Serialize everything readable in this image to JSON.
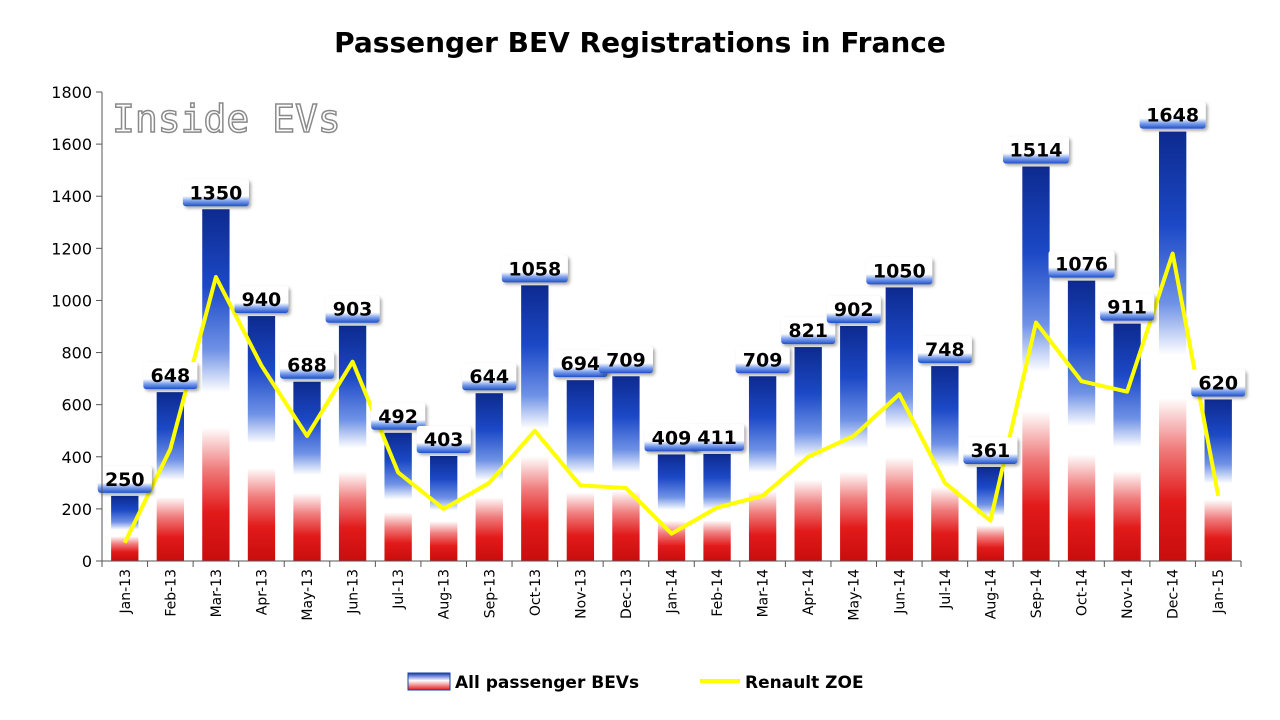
{
  "chart_data": {
    "type": "bar",
    "title": "Passenger BEV Registrations in France",
    "watermark": "Inside EVs",
    "categories": [
      "Jan-13",
      "Feb-13",
      "Mar-13",
      "Apr-13",
      "May-13",
      "Jun-13",
      "Jul-13",
      "Aug-13",
      "Sep-13",
      "Oct-13",
      "Nov-13",
      "Dec-13",
      "Jan-14",
      "Feb-14",
      "Mar-14",
      "Apr-14",
      "May-14",
      "Jun-14",
      "Jul-14",
      "Aug-14",
      "Sep-14",
      "Oct-14",
      "Nov-14",
      "Dec-14",
      "Jan-15"
    ],
    "series": [
      {
        "name": "All passenger BEVs",
        "type": "bar",
        "values": [
          250,
          648,
          1350,
          940,
          688,
          903,
          492,
          403,
          644,
          1058,
          694,
          709,
          409,
          411,
          709,
          821,
          902,
          1050,
          748,
          361,
          1514,
          1076,
          911,
          1648,
          620
        ]
      },
      {
        "name": "Renault ZOE",
        "type": "line",
        "color": "#ffff00",
        "values": [
          70,
          430,
          1090,
          750,
          480,
          765,
          340,
          200,
          300,
          500,
          290,
          280,
          105,
          205,
          250,
          400,
          480,
          640,
          300,
          155,
          915,
          690,
          650,
          1180,
          250
        ]
      }
    ],
    "ylim": [
      0,
      1800
    ],
    "yticks": [
      0,
      200,
      400,
      600,
      800,
      1000,
      1200,
      1400,
      1600,
      1800
    ],
    "xlabel": "",
    "ylabel": "",
    "legend_position": "bottom"
  }
}
